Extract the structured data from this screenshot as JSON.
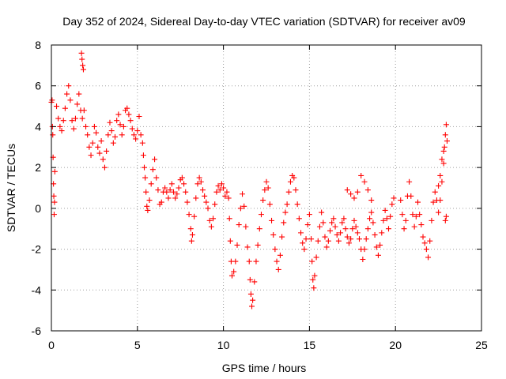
{
  "chart_data": {
    "type": "scatter",
    "title": "Day 352 of 2024, Sidereal Day-to-day VTEC variation (SDTVAR) for receiver av09",
    "xlabel": "GPS time / hours",
    "ylabel": "SDTVAR / TECUs",
    "xlim": [
      0,
      25
    ],
    "ylim": [
      -6,
      8
    ],
    "xticks": [
      0,
      5,
      10,
      15,
      20,
      25
    ],
    "yticks": [
      -6,
      -4,
      -2,
      0,
      2,
      4,
      6,
      8
    ],
    "grid": true,
    "marker": "+",
    "color": "#ff0000",
    "series": [
      {
        "name": "SDTVAR",
        "points": [
          [
            0.0,
            5.2
          ],
          [
            0.04,
            5.3
          ],
          [
            0.06,
            4.0
          ],
          [
            0.08,
            3.6
          ],
          [
            0.1,
            2.5
          ],
          [
            0.12,
            1.2
          ],
          [
            0.14,
            0.6
          ],
          [
            0.16,
            -0.3
          ],
          [
            0.18,
            0.3
          ],
          [
            0.2,
            1.8
          ],
          [
            0.3,
            5.0
          ],
          [
            0.4,
            4.4
          ],
          [
            0.5,
            4.0
          ],
          [
            0.6,
            3.8
          ],
          [
            0.7,
            4.3
          ],
          [
            0.8,
            4.9
          ],
          [
            0.9,
            5.6
          ],
          [
            1.0,
            6.0
          ],
          [
            1.1,
            5.3
          ],
          [
            1.2,
            4.3
          ],
          [
            1.3,
            3.9
          ],
          [
            1.4,
            4.4
          ],
          [
            1.5,
            5.1
          ],
          [
            1.6,
            5.6
          ],
          [
            1.7,
            4.8
          ],
          [
            1.8,
            4.4
          ],
          [
            1.9,
            4.8
          ],
          [
            1.75,
            7.6
          ],
          [
            1.78,
            7.3
          ],
          [
            1.82,
            7.0
          ],
          [
            1.86,
            6.8
          ],
          [
            2.0,
            4.0
          ],
          [
            2.1,
            3.6
          ],
          [
            2.2,
            3.0
          ],
          [
            2.3,
            2.6
          ],
          [
            2.4,
            3.2
          ],
          [
            2.5,
            4.0
          ],
          [
            2.6,
            3.7
          ],
          [
            2.7,
            3.0
          ],
          [
            2.8,
            2.7
          ],
          [
            2.9,
            3.3
          ],
          [
            3.0,
            2.4
          ],
          [
            3.1,
            2.0
          ],
          [
            3.2,
            2.8
          ],
          [
            3.3,
            3.6
          ],
          [
            3.4,
            4.2
          ],
          [
            3.5,
            3.8
          ],
          [
            3.6,
            3.2
          ],
          [
            3.7,
            3.5
          ],
          [
            3.8,
            4.3
          ],
          [
            3.9,
            4.6
          ],
          [
            4.0,
            4.1
          ],
          [
            4.1,
            3.6
          ],
          [
            4.2,
            4.0
          ],
          [
            4.3,
            4.8
          ],
          [
            4.4,
            4.9
          ],
          [
            4.5,
            4.6
          ],
          [
            4.6,
            4.3
          ],
          [
            4.7,
            3.9
          ],
          [
            4.8,
            3.6
          ],
          [
            4.9,
            3.4
          ],
          [
            5.0,
            3.8
          ],
          [
            5.1,
            4.5
          ],
          [
            5.2,
            3.6
          ],
          [
            5.3,
            3.2
          ],
          [
            5.35,
            2.6
          ],
          [
            5.4,
            2.0
          ],
          [
            5.45,
            1.5
          ],
          [
            5.5,
            0.8
          ],
          [
            5.55,
            0.1
          ],
          [
            5.6,
            -0.1
          ],
          [
            5.7,
            0.4
          ],
          [
            5.8,
            1.2
          ],
          [
            5.9,
            1.9
          ],
          [
            6.0,
            2.4
          ],
          [
            6.1,
            1.5
          ],
          [
            6.2,
            0.9
          ],
          [
            6.3,
            0.2
          ],
          [
            6.4,
            0.3
          ],
          [
            6.5,
            0.8
          ],
          [
            6.6,
            1.0
          ],
          [
            6.7,
            0.8
          ],
          [
            6.8,
            0.5
          ],
          [
            6.9,
            0.9
          ],
          [
            7.0,
            1.2
          ],
          [
            7.1,
            0.8
          ],
          [
            7.2,
            0.5
          ],
          [
            7.3,
            0.7
          ],
          [
            7.4,
            1.0
          ],
          [
            7.5,
            1.4
          ],
          [
            7.6,
            1.5
          ],
          [
            7.7,
            1.2
          ],
          [
            7.8,
            0.8
          ],
          [
            7.9,
            0.3
          ],
          [
            8.0,
            -0.3
          ],
          [
            8.1,
            -1.0
          ],
          [
            8.15,
            -1.6
          ],
          [
            8.2,
            -1.3
          ],
          [
            8.3,
            -0.4
          ],
          [
            8.4,
            0.5
          ],
          [
            8.5,
            1.2
          ],
          [
            8.6,
            1.5
          ],
          [
            8.7,
            1.3
          ],
          [
            8.8,
            0.9
          ],
          [
            8.9,
            0.6
          ],
          [
            9.0,
            0.3
          ],
          [
            9.1,
            0.0
          ],
          [
            9.2,
            -0.6
          ],
          [
            9.3,
            -0.9
          ],
          [
            9.4,
            -0.5
          ],
          [
            9.5,
            0.2
          ],
          [
            9.6,
            0.8
          ],
          [
            9.7,
            1.1
          ],
          [
            9.8,
            0.9
          ],
          [
            9.9,
            1.2
          ],
          [
            10.0,
            1.0
          ],
          [
            10.1,
            0.6
          ],
          [
            10.2,
            0.8
          ],
          [
            10.3,
            0.5
          ],
          [
            10.35,
            -0.5
          ],
          [
            10.4,
            -1.6
          ],
          [
            10.45,
            -2.6
          ],
          [
            10.5,
            -3.3
          ],
          [
            10.6,
            -3.1
          ],
          [
            10.7,
            -2.6
          ],
          [
            10.8,
            -1.8
          ],
          [
            10.9,
            -0.8
          ],
          [
            11.0,
            0.0
          ],
          [
            11.1,
            0.7
          ],
          [
            11.2,
            0.1
          ],
          [
            11.3,
            -0.9
          ],
          [
            11.4,
            -1.9
          ],
          [
            11.5,
            -2.6
          ],
          [
            11.55,
            -3.5
          ],
          [
            11.6,
            -4.2
          ],
          [
            11.65,
            -4.8
          ],
          [
            11.7,
            -4.5
          ],
          [
            11.8,
            -3.6
          ],
          [
            11.9,
            -2.6
          ],
          [
            12.0,
            -1.8
          ],
          [
            12.1,
            -1.0
          ],
          [
            12.2,
            -0.3
          ],
          [
            12.3,
            0.4
          ],
          [
            12.4,
            0.9
          ],
          [
            12.5,
            1.3
          ],
          [
            12.6,
            1.0
          ],
          [
            12.7,
            0.2
          ],
          [
            12.8,
            -0.6
          ],
          [
            12.9,
            -1.3
          ],
          [
            13.0,
            -2.0
          ],
          [
            13.1,
            -2.6
          ],
          [
            13.2,
            -3.0
          ],
          [
            13.3,
            -2.3
          ],
          [
            13.4,
            -1.4
          ],
          [
            13.5,
            -0.7
          ],
          [
            13.6,
            -0.2
          ],
          [
            13.7,
            0.2
          ],
          [
            13.8,
            0.8
          ],
          [
            13.9,
            1.3
          ],
          [
            14.0,
            1.6
          ],
          [
            14.1,
            1.5
          ],
          [
            14.2,
            0.9
          ],
          [
            14.3,
            0.2
          ],
          [
            14.4,
            -0.5
          ],
          [
            14.5,
            -1.2
          ],
          [
            14.6,
            -1.7
          ],
          [
            14.7,
            -2.0
          ],
          [
            14.8,
            -1.5
          ],
          [
            14.9,
            -0.8
          ],
          [
            15.0,
            -0.3
          ],
          [
            15.1,
            -1.5
          ],
          [
            15.15,
            -2.6
          ],
          [
            15.2,
            -3.5
          ],
          [
            15.25,
            -3.9
          ],
          [
            15.3,
            -3.3
          ],
          [
            15.4,
            -2.4
          ],
          [
            15.5,
            -1.6
          ],
          [
            15.6,
            -0.9
          ],
          [
            15.7,
            -0.2
          ],
          [
            15.8,
            -0.7
          ],
          [
            15.9,
            -1.4
          ],
          [
            16.0,
            -1.9
          ],
          [
            16.1,
            -1.6
          ],
          [
            16.2,
            -1.1
          ],
          [
            16.3,
            -0.7
          ],
          [
            16.4,
            -0.5
          ],
          [
            16.5,
            -0.9
          ],
          [
            16.6,
            -1.3
          ],
          [
            16.7,
            -1.6
          ],
          [
            16.8,
            -1.2
          ],
          [
            16.9,
            -0.7
          ],
          [
            17.0,
            -0.5
          ],
          [
            17.1,
            -1.0
          ],
          [
            17.2,
            -1.4
          ],
          [
            17.3,
            -1.7
          ],
          [
            17.4,
            -1.5
          ],
          [
            17.5,
            -1.0
          ],
          [
            17.6,
            -0.6
          ],
          [
            17.7,
            -0.9
          ],
          [
            17.8,
            -1.2
          ],
          [
            17.9,
            -1.5
          ],
          [
            18.0,
            -2.0
          ],
          [
            18.1,
            -2.5
          ],
          [
            18.2,
            -2.0
          ],
          [
            18.3,
            -1.5
          ],
          [
            18.4,
            -1.0
          ],
          [
            18.5,
            -0.5
          ],
          [
            18.6,
            -0.2
          ],
          [
            18.7,
            -0.7
          ],
          [
            18.8,
            -1.3
          ],
          [
            18.9,
            -1.9
          ],
          [
            19.0,
            -2.3
          ],
          [
            19.1,
            -1.8
          ],
          [
            19.2,
            -1.2
          ],
          [
            19.3,
            -0.6
          ],
          [
            19.4,
            -0.1
          ],
          [
            19.5,
            -0.5
          ],
          [
            19.6,
            -1.0
          ],
          [
            19.7,
            -0.4
          ],
          [
            19.8,
            0.2
          ],
          [
            19.9,
            0.5
          ],
          [
            17.2,
            0.9
          ],
          [
            17.4,
            0.7
          ],
          [
            17.6,
            0.5
          ],
          [
            17.8,
            0.8
          ],
          [
            18.0,
            1.6
          ],
          [
            18.2,
            1.3
          ],
          [
            18.4,
            0.9
          ],
          [
            18.6,
            0.4
          ],
          [
            20.3,
            0.4
          ],
          [
            20.4,
            -0.3
          ],
          [
            20.5,
            -1.0
          ],
          [
            20.6,
            -0.6
          ],
          [
            20.7,
            0.6
          ],
          [
            20.8,
            1.3
          ],
          [
            20.9,
            0.6
          ],
          [
            21.0,
            -0.3
          ],
          [
            21.1,
            -0.9
          ],
          [
            21.2,
            -0.4
          ],
          [
            21.3,
            0.3
          ],
          [
            21.4,
            -0.3
          ],
          [
            21.5,
            -0.8
          ],
          [
            21.6,
            -1.4
          ],
          [
            21.7,
            -1.7
          ],
          [
            21.8,
            -2.0
          ],
          [
            21.9,
            -2.4
          ],
          [
            22.0,
            -1.6
          ],
          [
            22.1,
            -0.6
          ],
          [
            22.2,
            0.3
          ],
          [
            22.3,
            0.8
          ],
          [
            22.4,
            0.4
          ],
          [
            22.5,
            -0.2
          ],
          [
            22.6,
            0.4
          ],
          [
            22.7,
            1.3
          ],
          [
            22.8,
            2.2
          ],
          [
            22.85,
            3.0
          ],
          [
            22.9,
            3.6
          ],
          [
            22.95,
            4.1
          ],
          [
            23.0,
            3.3
          ],
          [
            22.5,
            1.1
          ],
          [
            22.6,
            1.6
          ],
          [
            22.7,
            2.4
          ],
          [
            22.8,
            2.8
          ],
          [
            22.9,
            -0.6
          ],
          [
            22.95,
            -0.4
          ]
        ]
      }
    ]
  }
}
